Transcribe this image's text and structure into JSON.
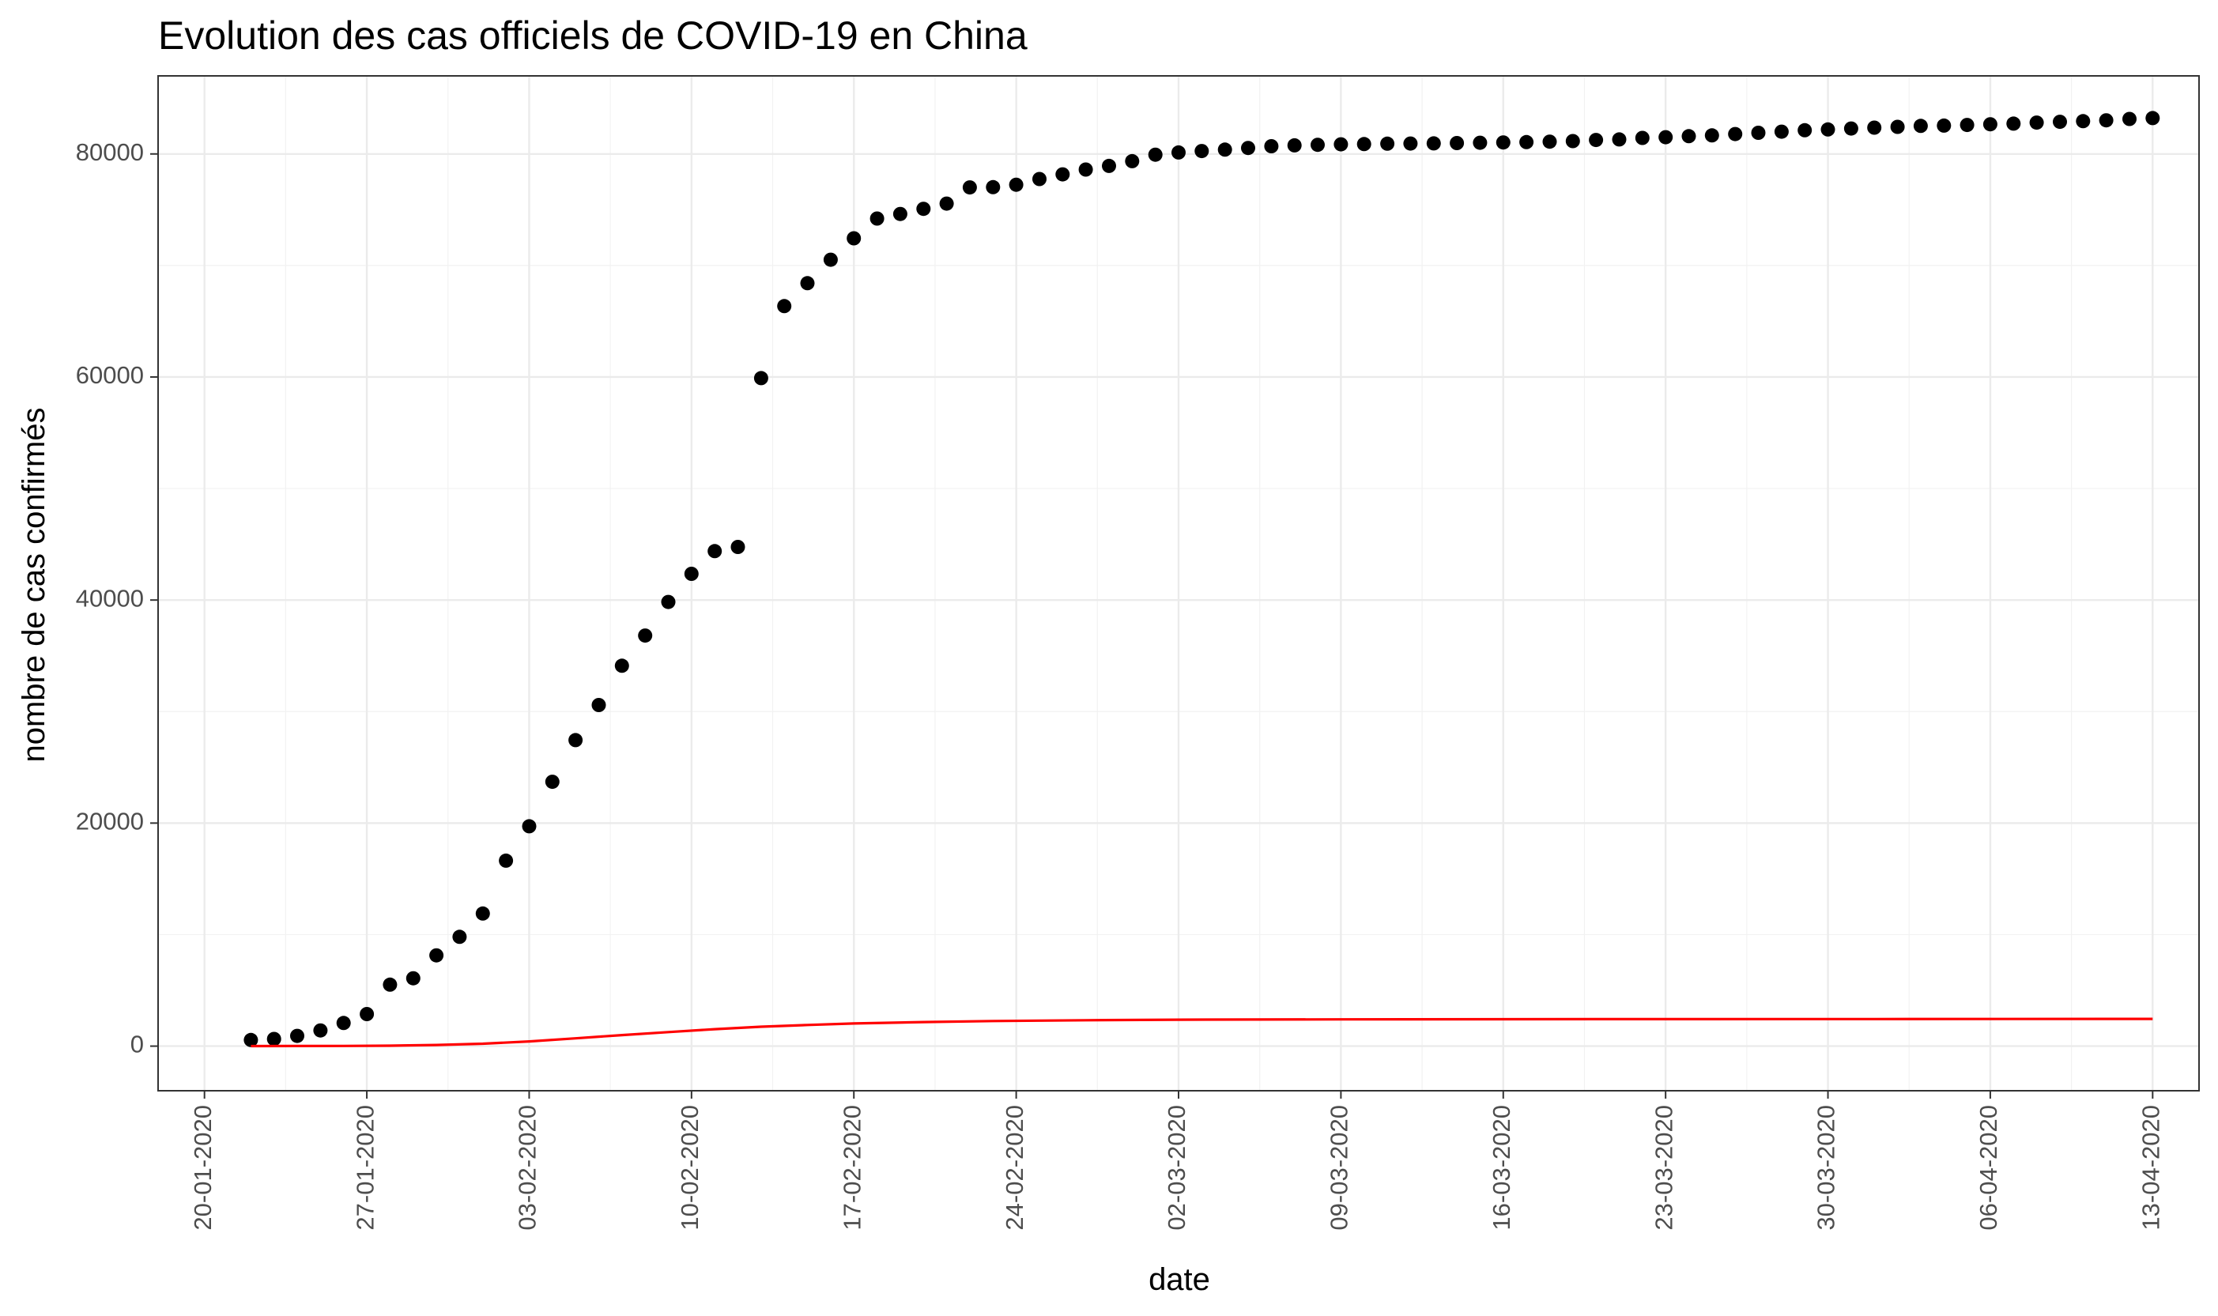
{
  "chart_data": {
    "type": "scatter",
    "title": "Evolution des cas officiels de COVID-19 en China",
    "xlabel": "date",
    "ylabel": "nombre de cas confirmés",
    "x_axis": {
      "type": "date",
      "range": [
        "2020-01-18",
        "2020-04-15"
      ],
      "ticks": [
        {
          "date": "2020-01-20",
          "label": "20-01-2020"
        },
        {
          "date": "2020-01-27",
          "label": "27-01-2020"
        },
        {
          "date": "2020-02-03",
          "label": "03-02-2020"
        },
        {
          "date": "2020-02-10",
          "label": "10-02-2020"
        },
        {
          "date": "2020-02-17",
          "label": "17-02-2020"
        },
        {
          "date": "2020-02-24",
          "label": "24-02-2020"
        },
        {
          "date": "2020-03-02",
          "label": "02-03-2020"
        },
        {
          "date": "2020-03-09",
          "label": "09-03-2020"
        },
        {
          "date": "2020-03-16",
          "label": "16-03-2020"
        },
        {
          "date": "2020-03-23",
          "label": "23-03-2020"
        },
        {
          "date": "2020-03-30",
          "label": "30-03-2020"
        },
        {
          "date": "2020-04-06",
          "label": "06-04-2020"
        },
        {
          "date": "2020-04-13",
          "label": "13-04-2020"
        }
      ]
    },
    "y_axis": {
      "range": [
        -4000,
        87000
      ],
      "ticks": [
        {
          "value": 0,
          "label": "0"
        },
        {
          "value": 20000,
          "label": "20000"
        },
        {
          "value": 40000,
          "label": "40000"
        },
        {
          "value": 60000,
          "label": "60000"
        },
        {
          "value": 80000,
          "label": "80000"
        }
      ]
    },
    "grid": true,
    "theme": "bw",
    "series": [
      {
        "kind": "points",
        "color": "#000000",
        "points": [
          [
            "2020-01-22",
            548
          ],
          [
            "2020-01-23",
            643
          ],
          [
            "2020-01-24",
            920
          ],
          [
            "2020-01-25",
            1406
          ],
          [
            "2020-01-26",
            2075
          ],
          [
            "2020-01-27",
            2877
          ],
          [
            "2020-01-28",
            5509
          ],
          [
            "2020-01-29",
            6087
          ],
          [
            "2020-01-30",
            8141
          ],
          [
            "2020-01-31",
            9802
          ],
          [
            "2020-02-01",
            11891
          ],
          [
            "2020-02-02",
            16630
          ],
          [
            "2020-02-03",
            19716
          ],
          [
            "2020-02-04",
            23707
          ],
          [
            "2020-02-05",
            27440
          ],
          [
            "2020-02-06",
            30587
          ],
          [
            "2020-02-07",
            34110
          ],
          [
            "2020-02-08",
            36814
          ],
          [
            "2020-02-09",
            39829
          ],
          [
            "2020-02-10",
            42354
          ],
          [
            "2020-02-11",
            44386
          ],
          [
            "2020-02-12",
            44759
          ],
          [
            "2020-02-13",
            59895
          ],
          [
            "2020-02-14",
            66358
          ],
          [
            "2020-02-15",
            68413
          ],
          [
            "2020-02-16",
            70513
          ],
          [
            "2020-02-17",
            72434
          ],
          [
            "2020-02-18",
            74211
          ],
          [
            "2020-02-19",
            74619
          ],
          [
            "2020-02-20",
            75077
          ],
          [
            "2020-02-21",
            75550
          ],
          [
            "2020-02-22",
            77001
          ],
          [
            "2020-02-23",
            77022
          ],
          [
            "2020-02-24",
            77241
          ],
          [
            "2020-02-25",
            77754
          ],
          [
            "2020-02-26",
            78166
          ],
          [
            "2020-02-27",
            78600
          ],
          [
            "2020-02-28",
            78928
          ],
          [
            "2020-02-29",
            79356
          ],
          [
            "2020-03-01",
            79932
          ],
          [
            "2020-03-02",
            80136
          ],
          [
            "2020-03-03",
            80261
          ],
          [
            "2020-03-04",
            80386
          ],
          [
            "2020-03-05",
            80537
          ],
          [
            "2020-03-06",
            80690
          ],
          [
            "2020-03-07",
            80770
          ],
          [
            "2020-03-08",
            80823
          ],
          [
            "2020-03-09",
            80860
          ],
          [
            "2020-03-10",
            80887
          ],
          [
            "2020-03-11",
            80921
          ],
          [
            "2020-03-12",
            80932
          ],
          [
            "2020-03-13",
            80945
          ],
          [
            "2020-03-14",
            80977
          ],
          [
            "2020-03-15",
            81003
          ],
          [
            "2020-03-16",
            81033
          ],
          [
            "2020-03-17",
            81058
          ],
          [
            "2020-03-18",
            81102
          ],
          [
            "2020-03-19",
            81156
          ],
          [
            "2020-03-20",
            81250
          ],
          [
            "2020-03-21",
            81305
          ],
          [
            "2020-03-22",
            81435
          ],
          [
            "2020-03-23",
            81498
          ],
          [
            "2020-03-24",
            81591
          ],
          [
            "2020-03-25",
            81661
          ],
          [
            "2020-03-26",
            81782
          ],
          [
            "2020-03-27",
            81897
          ],
          [
            "2020-03-28",
            81999
          ],
          [
            "2020-03-29",
            82122
          ],
          [
            "2020-03-30",
            82198
          ],
          [
            "2020-03-31",
            82279
          ],
          [
            "2020-04-01",
            82361
          ],
          [
            "2020-04-02",
            82432
          ],
          [
            "2020-04-03",
            82511
          ],
          [
            "2020-04-04",
            82543
          ],
          [
            "2020-04-05",
            82602
          ],
          [
            "2020-04-06",
            82665
          ],
          [
            "2020-04-07",
            82718
          ],
          [
            "2020-04-08",
            82809
          ],
          [
            "2020-04-09",
            82883
          ],
          [
            "2020-04-10",
            82941
          ],
          [
            "2020-04-11",
            83014
          ],
          [
            "2020-04-12",
            83134
          ],
          [
            "2020-04-13",
            83213
          ]
        ]
      },
      {
        "kind": "line",
        "color": "#ff0000",
        "points": [
          [
            "2020-01-22",
            5
          ],
          [
            "2020-01-24",
            10
          ],
          [
            "2020-01-26",
            18
          ],
          [
            "2020-01-28",
            40
          ],
          [
            "2020-01-30",
            100
          ],
          [
            "2020-02-01",
            220
          ],
          [
            "2020-02-03",
            420
          ],
          [
            "2020-02-05",
            700
          ],
          [
            "2020-02-07",
            990
          ],
          [
            "2020-02-09",
            1260
          ],
          [
            "2020-02-11",
            1520
          ],
          [
            "2020-02-13",
            1740
          ],
          [
            "2020-02-15",
            1900
          ],
          [
            "2020-02-17",
            2030
          ],
          [
            "2020-02-20",
            2160
          ],
          [
            "2020-02-23",
            2250
          ],
          [
            "2020-02-27",
            2320
          ],
          [
            "2020-03-02",
            2370
          ],
          [
            "2020-03-09",
            2400
          ],
          [
            "2020-03-20",
            2420
          ],
          [
            "2020-04-01",
            2430
          ],
          [
            "2020-04-13",
            2440
          ]
        ]
      }
    ]
  }
}
